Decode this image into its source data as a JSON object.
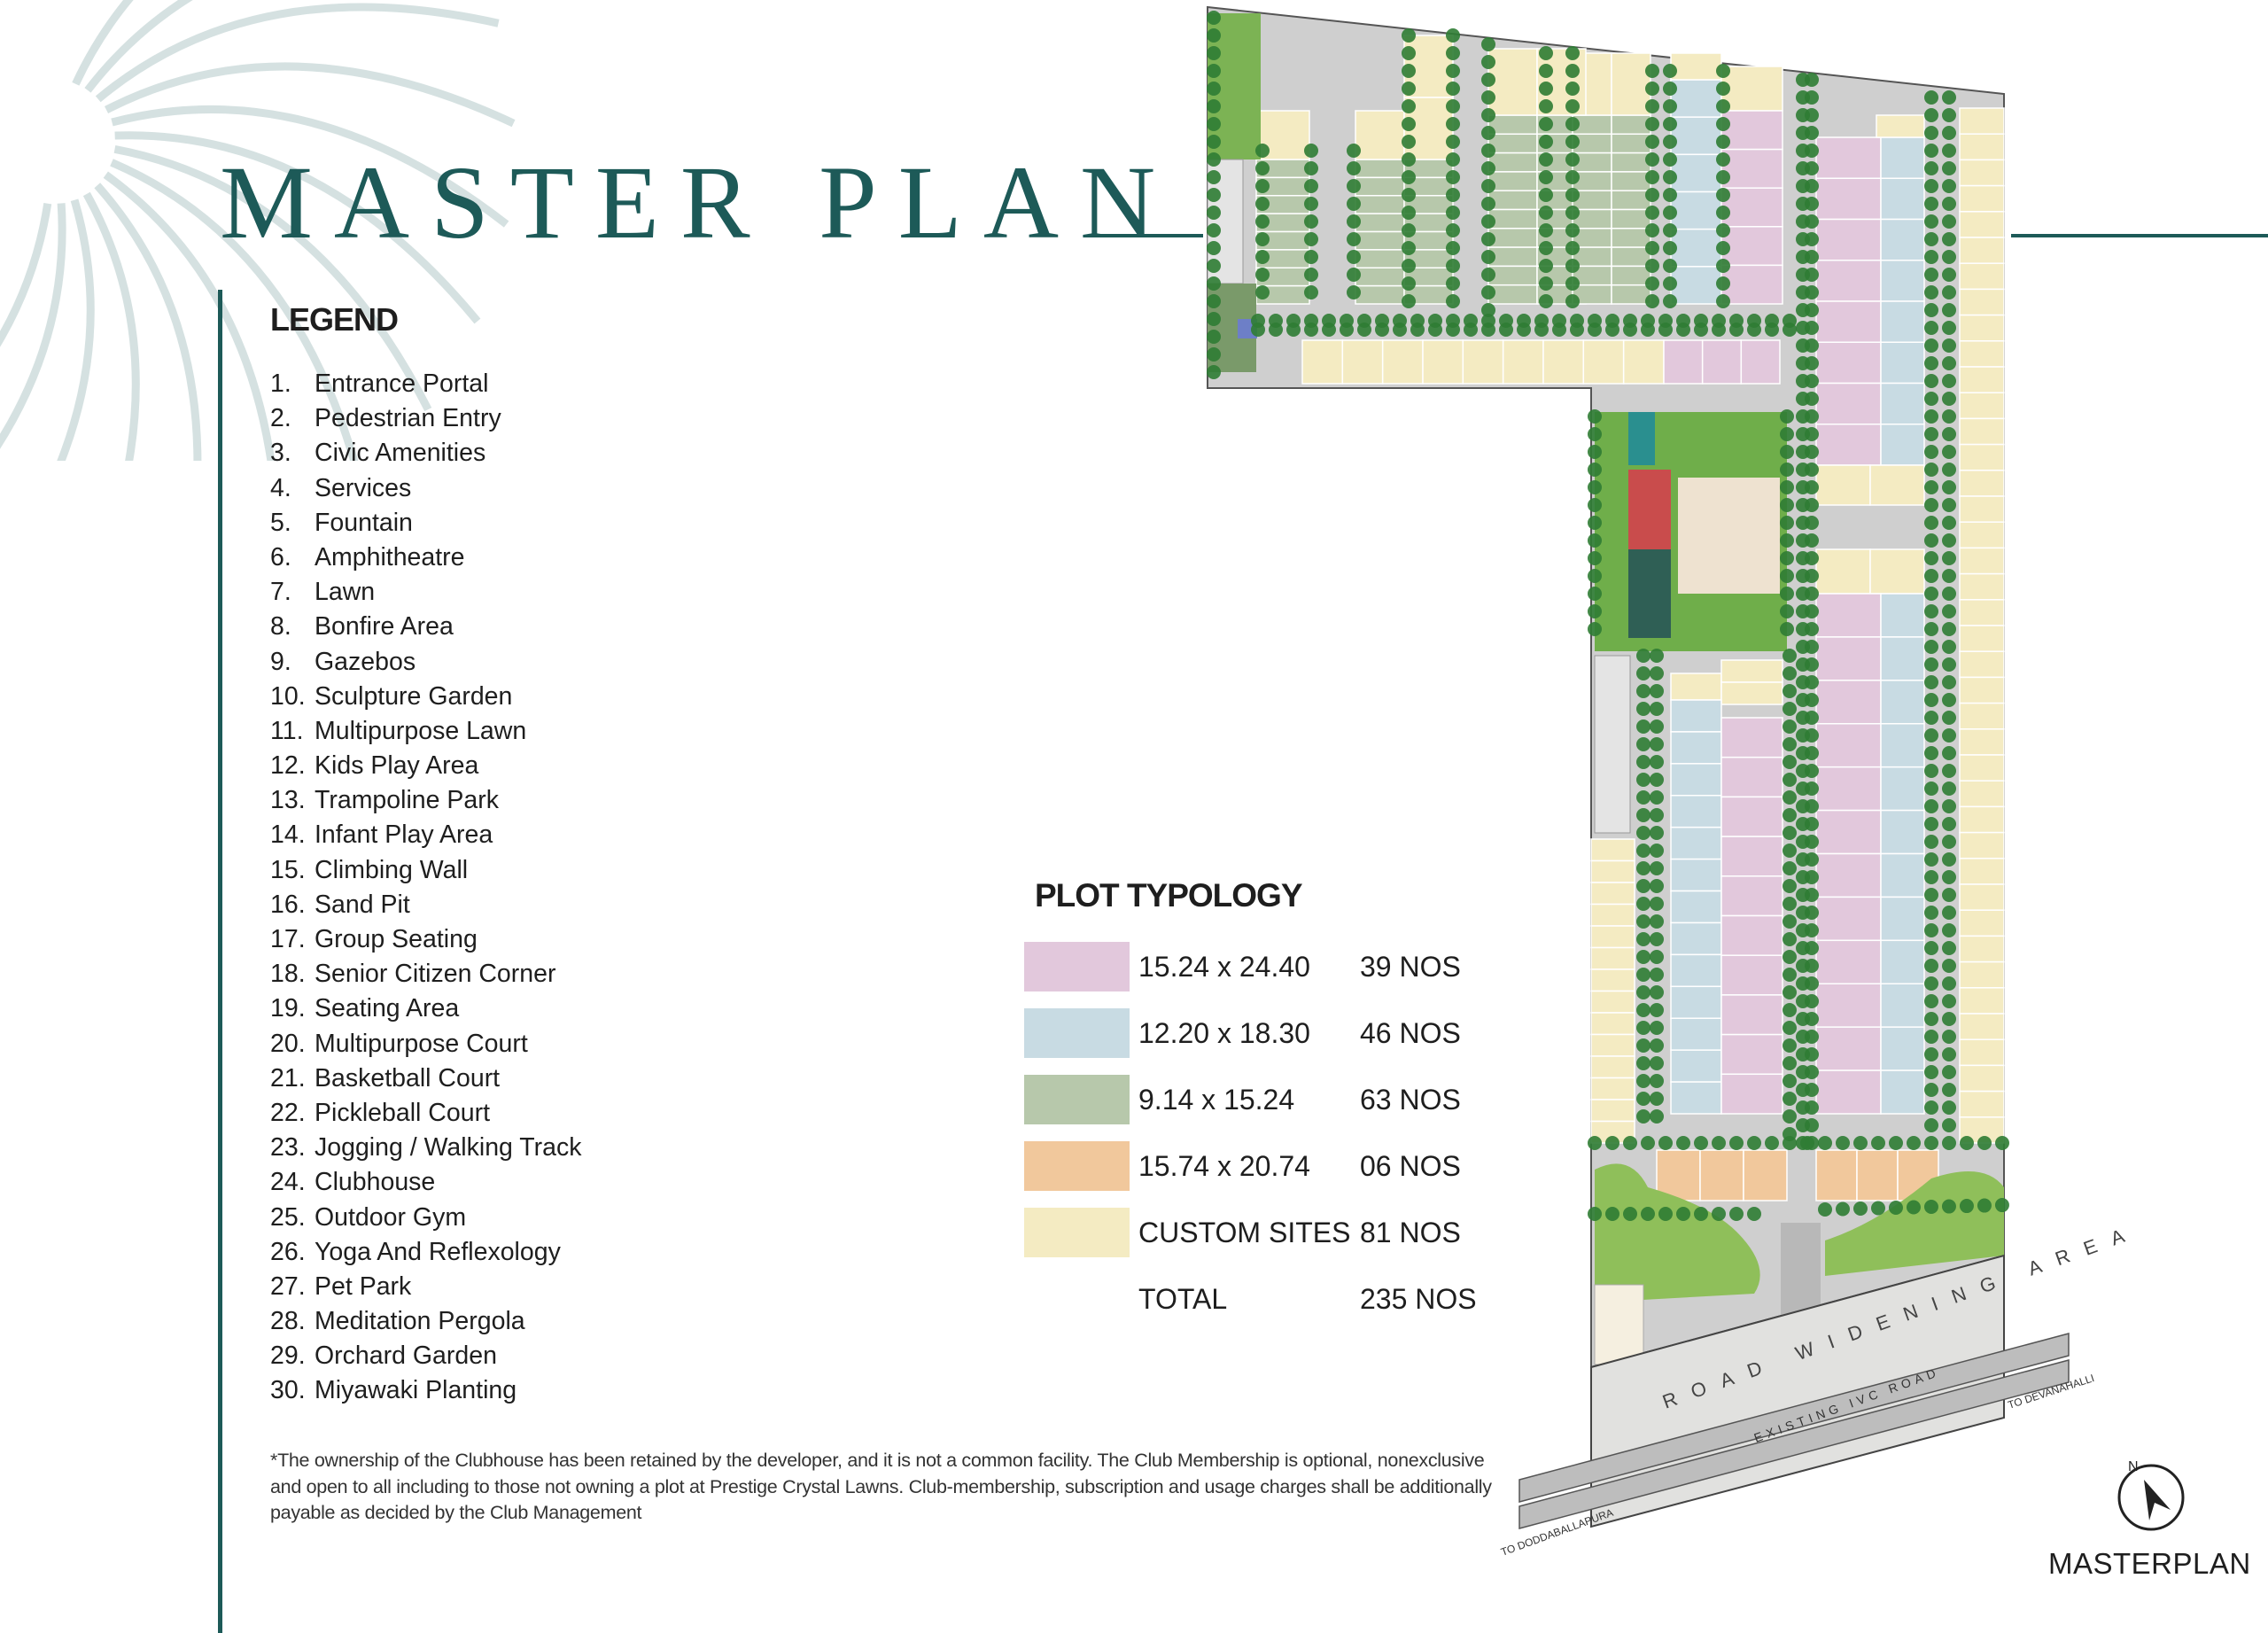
{
  "header": {
    "title": "MASTER PLAN"
  },
  "legend": {
    "heading": "LEGEND",
    "items": [
      {
        "num": "1.",
        "label": "Entrance Portal"
      },
      {
        "num": "2.",
        "label": "Pedestrian Entry"
      },
      {
        "num": "3.",
        "label": "Civic Amenities"
      },
      {
        "num": "4.",
        "label": "Services"
      },
      {
        "num": "5.",
        "label": "Fountain"
      },
      {
        "num": "6.",
        "label": "Amphitheatre"
      },
      {
        "num": "7.",
        "label": "Lawn"
      },
      {
        "num": "8.",
        "label": "Bonfire Area"
      },
      {
        "num": "9.",
        "label": "Gazebos"
      },
      {
        "num": "10.",
        "label": "Sculpture Garden"
      },
      {
        "num": "11.",
        "label": "Multipurpose Lawn"
      },
      {
        "num": "12.",
        "label": "Kids Play Area"
      },
      {
        "num": "13.",
        "label": "Trampoline Park"
      },
      {
        "num": "14.",
        "label": "Infant Play Area"
      },
      {
        "num": "15.",
        "label": "Climbing Wall"
      },
      {
        "num": "16.",
        "label": "Sand Pit"
      },
      {
        "num": "17.",
        "label": "Group Seating"
      },
      {
        "num": "18.",
        "label": "Senior Citizen Corner"
      },
      {
        "num": "19.",
        "label": "Seating Area"
      },
      {
        "num": "20.",
        "label": "Multipurpose Court"
      },
      {
        "num": "21.",
        "label": "Basketball Court"
      },
      {
        "num": "22.",
        "label": "Pickleball Court"
      },
      {
        "num": "23.",
        "label": "Jogging / Walking Track"
      },
      {
        "num": "24.",
        "label": "Clubhouse"
      },
      {
        "num": "25.",
        "label": "Outdoor Gym"
      },
      {
        "num": "26.",
        "label": "Yoga And Reflexology"
      },
      {
        "num": "27.",
        "label": "Pet Park"
      },
      {
        "num": "28.",
        "label": "Meditation Pergola"
      },
      {
        "num": "29.",
        "label": "Orchard Garden"
      },
      {
        "num": "30.",
        "label": "Miyawaki Planting"
      }
    ]
  },
  "plot_typology": {
    "heading": "PLOT TYPOLOGY",
    "rows": [
      {
        "size": "15.24 x 24.40",
        "count": "39 NOS",
        "color": "#e2c8dc"
      },
      {
        "size": "12.20 x 18.30",
        "count": "46 NOS",
        "color": "#c8dbe3"
      },
      {
        "size": "9.14 x 15.24",
        "count": "63 NOS",
        "color": "#b7c8ab"
      },
      {
        "size": "15.74 x 20.74",
        "count": "06 NOS",
        "color": "#f1c89c"
      },
      {
        "size": "CUSTOM SITES",
        "count": "81 NOS",
        "color": "#f4ebc2"
      },
      {
        "size": "TOTAL",
        "count": "235 NOS",
        "color": ""
      }
    ]
  },
  "footnote": "*The ownership of the Clubhouse has been retained by the developer, and it is not a common facility. The Club Membership is optional, nonexclusive and open to all including to those not owning a plot at Prestige Crystal Lawns. Club-membership, subscription and usage charges shall be additionally payable as decided by the Club Management",
  "map": {
    "road_widening": "ROAD WIDENING AREA",
    "existing_road": "EXISTING IVC ROAD",
    "to_devanahalli": "TO DEVANAHALLI",
    "to_doddaballapura": "TO DODDABALLAPURA",
    "label": "MASTERPLAN",
    "compass_letter": "N",
    "colors": {
      "accent": "#1d5a58",
      "tree": "#2f7d34",
      "lawn": "#8fbf5a",
      "road": "#cfcfcf"
    }
  }
}
